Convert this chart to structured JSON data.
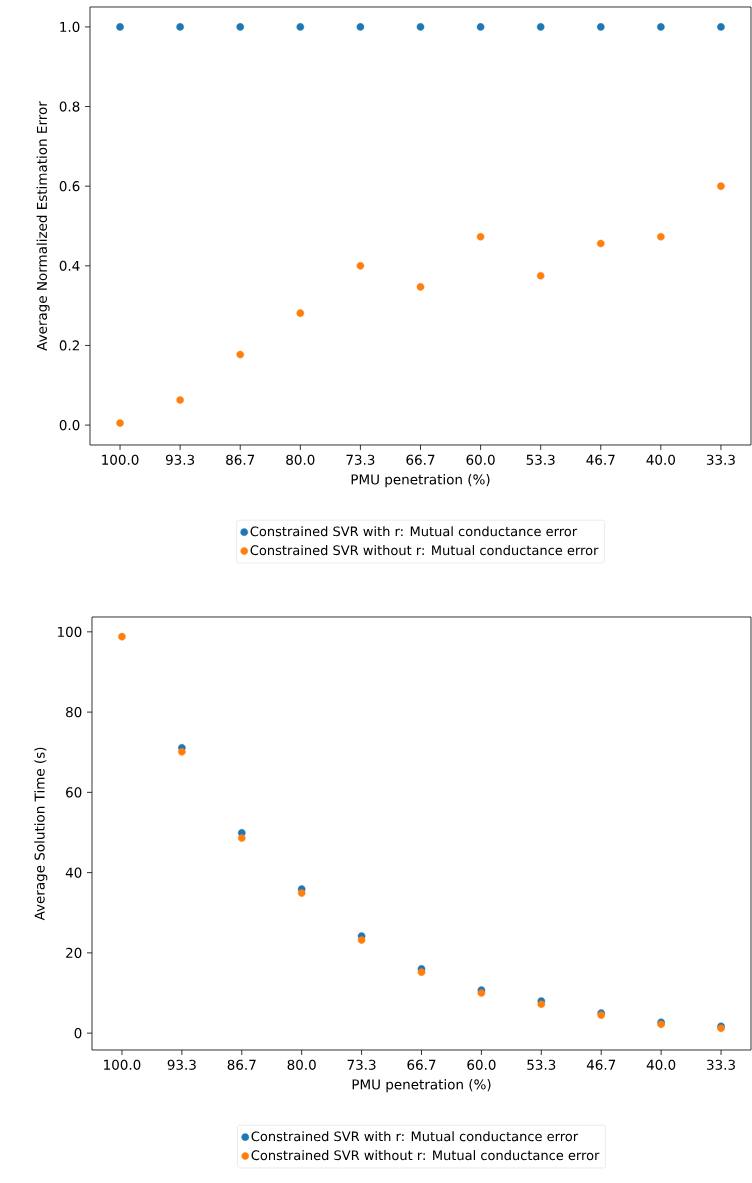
{
  "chart_data": [
    {
      "type": "scatter",
      "xlabel": "PMU penetration (%)",
      "ylabel": "Average Normalized Estimation Error",
      "categories": [
        "100.0",
        "93.3",
        "86.7",
        "80.0",
        "73.3",
        "66.7",
        "60.0",
        "53.3",
        "46.7",
        "40.0",
        "33.3"
      ],
      "ylim": [
        -0.05,
        1.05
      ],
      "yticks": [
        {
          "value": 0,
          "label": "0.0"
        },
        0.2,
        0.4,
        0.6,
        0.8,
        {
          "value": 1,
          "label": "1.0"
        }
      ],
      "legend": "bottom",
      "series": [
        {
          "name": "Constrained SVR with r: Mutual conductance error",
          "color": "#1f77b4",
          "values": [
            1.0,
            1.0,
            1.0,
            1.0,
            1.0,
            1.0,
            1.0,
            1.0,
            1.0,
            1.0,
            1.0
          ]
        },
        {
          "name": "Constrained SVR without r: Mutual conductance error",
          "color": "#ff7f0e",
          "values": [
            0.005,
            0.063,
            0.177,
            0.281,
            0.4,
            0.347,
            0.473,
            0.375,
            0.456,
            0.473,
            0.6
          ]
        }
      ]
    },
    {
      "type": "scatter",
      "xlabel": "PMU penetration (%)",
      "ylabel": "Average Solution Time (s)",
      "categories": [
        "100.0",
        "93.3",
        "86.7",
        "80.0",
        "73.3",
        "66.7",
        "60.0",
        "53.3",
        "46.7",
        "40.0",
        "33.3"
      ],
      "ylim": [
        -4.2,
        103.7
      ],
      "yticks": [
        0,
        20,
        40,
        60,
        80,
        100
      ],
      "legend": "bottom",
      "series": [
        {
          "name": "Constrained SVR with r: Mutual conductance error",
          "color": "#1f77b4",
          "values": [
            null,
            71.1,
            49.9,
            35.9,
            24.2,
            16.0,
            10.7,
            8.0,
            5.0,
            2.7,
            1.7
          ]
        },
        {
          "name": "Constrained SVR without r: Mutual conductance error",
          "color": "#ff7f0e",
          "values": [
            98.8,
            70.1,
            48.6,
            34.9,
            23.2,
            15.2,
            10.0,
            7.2,
            4.5,
            2.2,
            1.2
          ]
        }
      ]
    }
  ]
}
